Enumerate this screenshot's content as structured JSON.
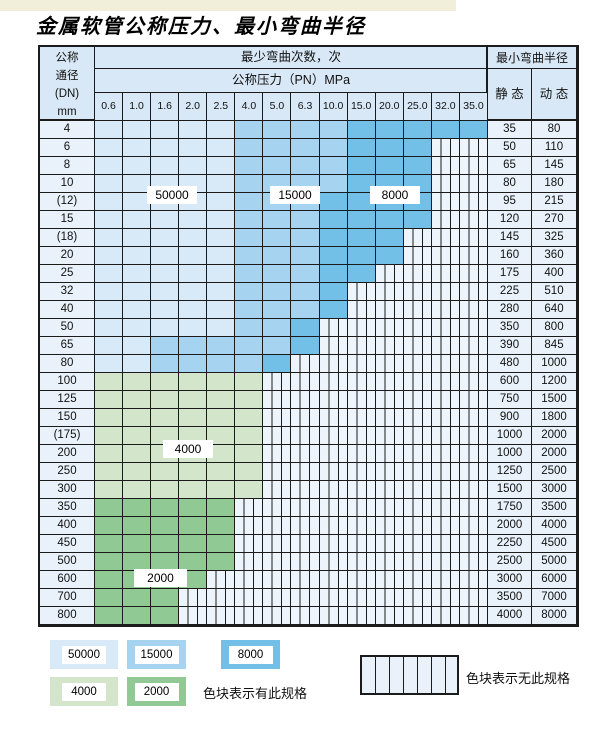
{
  "page": {
    "title": "金属软管公称压力、最小弯曲半径"
  },
  "header": {
    "dn_lines": [
      "公称",
      "通径",
      "(DN)",
      "mm"
    ],
    "bend_count_label": "最少弯曲次数，次",
    "pressure_label": "公称压力（PN）MPa",
    "pressures": [
      "0.6",
      "1.0",
      "1.6",
      "2.0",
      "2.5",
      "4.0",
      "5.0",
      "6.3",
      "10.0",
      "15.0",
      "20.0",
      "25.0",
      "32.0",
      "35.0"
    ],
    "radius_label": "最小弯曲半径",
    "static_label": "静 态",
    "dynamic_label": "动 态"
  },
  "cycle_labels": [
    {
      "value": "50000"
    },
    {
      "value": "15000"
    },
    {
      "value": "8000"
    },
    {
      "value": "4000"
    },
    {
      "value": "2000"
    }
  ],
  "table": {
    "rows": [
      {
        "dn": "4",
        "static": "35",
        "dynamic": "80",
        "zone": "blue",
        "shades": [
          5,
          4,
          5
        ]
      },
      {
        "dn": "6",
        "static": "50",
        "dynamic": "110",
        "zone": "blue",
        "shades": [
          5,
          4,
          3
        ]
      },
      {
        "dn": "8",
        "static": "65",
        "dynamic": "145",
        "zone": "blue",
        "shades": [
          5,
          4,
          3
        ]
      },
      {
        "dn": "10",
        "static": "80",
        "dynamic": "180",
        "zone": "blue",
        "shades": [
          5,
          4,
          3
        ]
      },
      {
        "dn": "(12)",
        "static": "95",
        "dynamic": "215",
        "zone": "blue",
        "shades": [
          5,
          3,
          4
        ]
      },
      {
        "dn": "15",
        "static": "120",
        "dynamic": "270",
        "zone": "blue",
        "shades": [
          5,
          3,
          4
        ]
      },
      {
        "dn": "(18)",
        "static": "145",
        "dynamic": "325",
        "zone": "blue",
        "shades": [
          5,
          3,
          3
        ]
      },
      {
        "dn": "20",
        "static": "160",
        "dynamic": "360",
        "zone": "blue",
        "shades": [
          5,
          3,
          3
        ]
      },
      {
        "dn": "25",
        "static": "175",
        "dynamic": "400",
        "zone": "blue",
        "shades": [
          5,
          3,
          2
        ]
      },
      {
        "dn": "32",
        "static": "225",
        "dynamic": "510",
        "zone": "blue",
        "shades": [
          5,
          3,
          1
        ]
      },
      {
        "dn": "40",
        "static": "280",
        "dynamic": "640",
        "zone": "blue",
        "shades": [
          5,
          3,
          1
        ]
      },
      {
        "dn": "50",
        "static": "350",
        "dynamic": "800",
        "zone": "blue",
        "shades": [
          5,
          2,
          1
        ]
      },
      {
        "dn": "65",
        "static": "390",
        "dynamic": "845",
        "zone": "blue",
        "shades": [
          2,
          5,
          1
        ]
      },
      {
        "dn": "80",
        "static": "480",
        "dynamic": "1000",
        "zone": "blue",
        "shades": [
          2,
          4,
          1
        ]
      },
      {
        "dn": "100",
        "static": "600",
        "dynamic": "1200",
        "zone": "green4",
        "colored": 6
      },
      {
        "dn": "125",
        "static": "750",
        "dynamic": "1500",
        "zone": "green4",
        "colored": 6
      },
      {
        "dn": "150",
        "static": "900",
        "dynamic": "1800",
        "zone": "green4",
        "colored": 6
      },
      {
        "dn": "(175)",
        "static": "1000",
        "dynamic": "2000",
        "zone": "green4",
        "colored": 6
      },
      {
        "dn": "200",
        "static": "1000",
        "dynamic": "2000",
        "zone": "green4",
        "colored": 6
      },
      {
        "dn": "250",
        "static": "1250",
        "dynamic": "2500",
        "zone": "green4",
        "colored": 6
      },
      {
        "dn": "300",
        "static": "1500",
        "dynamic": "3000",
        "zone": "green4",
        "colored": 6
      },
      {
        "dn": "350",
        "static": "1750",
        "dynamic": "3500",
        "zone": "green2",
        "colored": 5
      },
      {
        "dn": "400",
        "static": "2000",
        "dynamic": "4000",
        "zone": "green2",
        "colored": 5
      },
      {
        "dn": "450",
        "static": "2250",
        "dynamic": "4500",
        "zone": "green2",
        "colored": 5
      },
      {
        "dn": "500",
        "static": "2500",
        "dynamic": "5000",
        "zone": "green2",
        "colored": 5
      },
      {
        "dn": "600",
        "static": "3000",
        "dynamic": "6000",
        "zone": "green2",
        "colored": 4
      },
      {
        "dn": "700",
        "static": "3500",
        "dynamic": "7000",
        "zone": "green2",
        "colored": 3
      },
      {
        "dn": "800",
        "static": "4000",
        "dynamic": "8000",
        "zone": "green2",
        "colored": 3
      }
    ]
  },
  "legend": {
    "swatches": [
      {
        "value": "50000",
        "color_key": "blue_light"
      },
      {
        "value": "15000",
        "color_key": "blue_mid"
      },
      {
        "value": "8000",
        "color_key": "blue_dark"
      },
      {
        "value": "4000",
        "color_key": "green_light"
      },
      {
        "value": "2000",
        "color_key": "green_dark"
      }
    ],
    "has_spec_label": "色块表示有此规格",
    "no_spec_label": "色块表示无此规格"
  },
  "colors": {
    "blue_light": "#d8eaf8",
    "blue_mid": "#a6d3ef",
    "blue_dark": "#72bfe7",
    "green_light": "#d3e5cb",
    "green_dark": "#90c994",
    "header_bg": "#d8e8f6",
    "label_bg": "#e9f2fa",
    "striped_bg": "#eef4fb",
    "grid": "#1b1b1b",
    "cream_strip": "#f1eeda"
  }
}
